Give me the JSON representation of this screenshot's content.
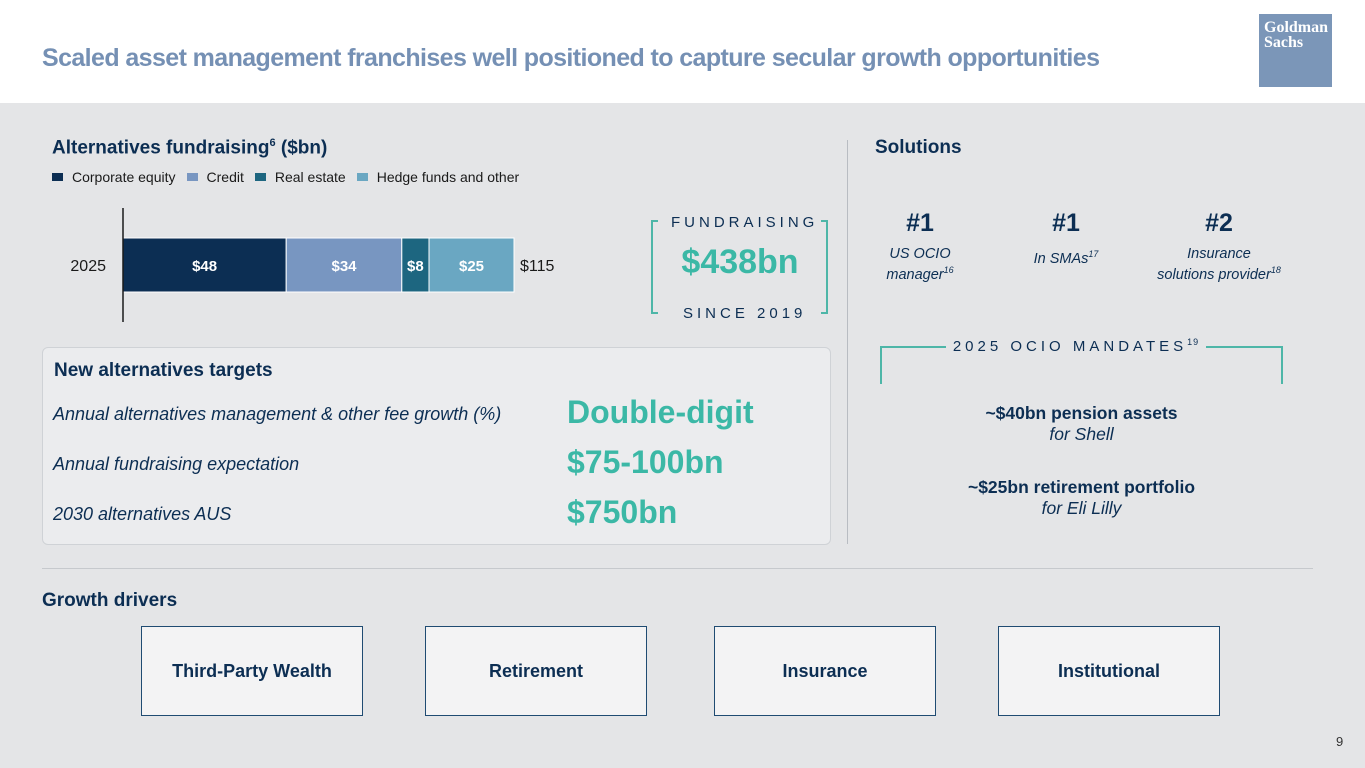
{
  "header": {
    "title": "Scaled asset management franchises well positioned to capture secular growth opportunities",
    "logo_line1": "Goldman",
    "logo_line2": "Sachs"
  },
  "alternatives": {
    "title_main": "Alternatives fundraising",
    "title_sup": "6",
    "title_unit": " ($bn)"
  },
  "chart_data": {
    "type": "bar",
    "orientation": "horizontal",
    "stacked": true,
    "categories": [
      "2025"
    ],
    "series": [
      {
        "name": "Corporate equity",
        "values": [
          48
        ],
        "label": "$48",
        "color": "#0c2e53"
      },
      {
        "name": "Credit",
        "values": [
          34
        ],
        "label": "$34",
        "color": "#7896c1"
      },
      {
        "name": "Real estate",
        "values": [
          8
        ],
        "label": "$8",
        "color": "#1d6680"
      },
      {
        "name": "Hedge funds and other",
        "values": [
          25
        ],
        "label": "$25",
        "color": "#6aa7c2"
      }
    ],
    "total": 115,
    "total_label": "$115"
  },
  "fundraising": {
    "top": "FUNDRAISING",
    "value": "$438bn",
    "bottom": "SINCE 2019"
  },
  "targets": {
    "title": "New alternatives targets",
    "rows": [
      {
        "label": "Annual alternatives management & other fee growth (%)",
        "value": "Double-digit"
      },
      {
        "label": "Annual fundraising expectation",
        "value": "$75-100bn"
      },
      {
        "label": "2030 alternatives AUS",
        "value": "$750bn"
      }
    ]
  },
  "solutions": {
    "title": "Solutions",
    "ranks": [
      {
        "num": "#1",
        "line1": "US OCIO",
        "line2": "manager",
        "sup": "16"
      },
      {
        "num": "#1",
        "line1": "",
        "line2": "In SMAs",
        "sup": "17"
      },
      {
        "num": "#2",
        "line1": "Insurance",
        "line2": "solutions provider",
        "sup": "18"
      }
    ],
    "ocio_label": "2025 OCIO MANDATES",
    "ocio_sup": "19",
    "mandates": [
      {
        "bold": "~$40bn pension assets",
        "italic": "for Shell"
      },
      {
        "bold": "~$25bn retirement portfolio",
        "italic": "for Eli Lilly"
      }
    ]
  },
  "growth": {
    "title": "Growth drivers",
    "drivers": [
      "Third-Party Wealth",
      "Retirement",
      "Insurance",
      "Institutional"
    ]
  },
  "page_number": "9"
}
